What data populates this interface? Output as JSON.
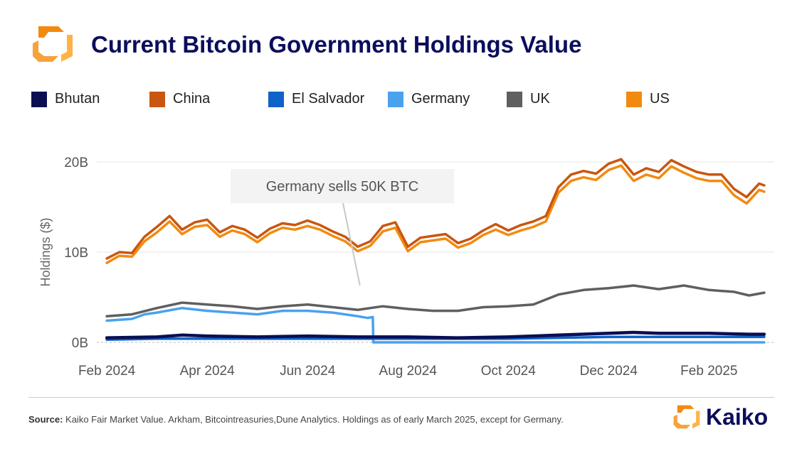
{
  "header": {
    "title": "Current Bitcoin Government Holdings Value"
  },
  "legend": [
    {
      "label": "Bhutan",
      "color": "#0a0f52"
    },
    {
      "label": "China",
      "color": "#c9560f"
    },
    {
      "label": "El Salvador",
      "color": "#0f62c8"
    },
    {
      "label": "Germany",
      "color": "#4aa1ee"
    },
    {
      "label": "UK",
      "color": "#5f5f5f"
    },
    {
      "label": "US",
      "color": "#f28a10"
    }
  ],
  "footer": {
    "source_label": "Source:",
    "source_text": "Kaiko Fair Market Value. Arkham, Bitcointreasuries,Dune Analytics. Holdings as of early March 2025, except for Germany.",
    "brand": "Kaiko"
  },
  "chart_data": {
    "type": "line",
    "title": "Current Bitcoin Government Holdings Value",
    "xlabel": "",
    "ylabel": "Holdings ($)",
    "ylim": [
      0,
      20
    ],
    "yunits": "billions USD",
    "yticks": [
      0,
      10,
      20
    ],
    "ytick_labels": [
      "0B",
      "10B",
      "20B"
    ],
    "xticks": [
      "Feb 2024",
      "Apr 2024",
      "Jun 2024",
      "Aug 2024",
      "Oct 2024",
      "Dec 2024",
      "Feb 2025"
    ],
    "xlim_months": [
      -0.2,
      13.3
    ],
    "grid": "horizontal",
    "legend_position": "top",
    "annotation": {
      "text": "Germany sells 50K BTC",
      "points_to_month": 5.3,
      "points_to_value": 6.3
    },
    "series": [
      {
        "name": "China",
        "color": "#c9560f",
        "x": [
          0,
          0.25,
          0.5,
          0.75,
          1,
          1.25,
          1.5,
          1.75,
          2,
          2.25,
          2.5,
          2.75,
          3,
          3.25,
          3.5,
          3.75,
          4,
          4.25,
          4.5,
          4.75,
          5,
          5.25,
          5.5,
          5.75,
          6,
          6.25,
          6.5,
          6.75,
          7,
          7.25,
          7.5,
          7.75,
          8,
          8.25,
          8.5,
          8.75,
          9,
          9.25,
          9.5,
          9.75,
          10,
          10.25,
          10.5,
          10.75,
          11,
          11.25,
          11.5,
          11.75,
          12,
          12.25,
          12.5,
          12.75,
          13,
          13.1
        ],
        "values": [
          9.3,
          10.0,
          9.9,
          11.7,
          12.8,
          14.0,
          12.5,
          13.3,
          13.6,
          12.2,
          12.9,
          12.5,
          11.6,
          12.6,
          13.2,
          13.0,
          13.5,
          13.0,
          12.3,
          11.7,
          10.6,
          11.2,
          12.9,
          13.3,
          10.6,
          11.6,
          11.8,
          12.0,
          11.0,
          11.5,
          12.4,
          13.1,
          12.4,
          13.0,
          13.4,
          14.0,
          17.2,
          18.6,
          19.0,
          18.7,
          19.8,
          20.3,
          18.6,
          19.3,
          18.9,
          20.2,
          19.5,
          18.9,
          18.6,
          18.6,
          17.0,
          16.1,
          17.6,
          17.4
        ]
      },
      {
        "name": "US",
        "color": "#f28a10",
        "x": [
          0,
          0.25,
          0.5,
          0.75,
          1,
          1.25,
          1.5,
          1.75,
          2,
          2.25,
          2.5,
          2.75,
          3,
          3.25,
          3.5,
          3.75,
          4,
          4.25,
          4.5,
          4.75,
          5,
          5.25,
          5.5,
          5.75,
          6,
          6.25,
          6.5,
          6.75,
          7,
          7.25,
          7.5,
          7.75,
          8,
          8.25,
          8.5,
          8.75,
          9,
          9.25,
          9.5,
          9.75,
          10,
          10.25,
          10.5,
          10.75,
          11,
          11.25,
          11.5,
          11.75,
          12,
          12.25,
          12.5,
          12.75,
          13,
          13.1
        ],
        "values": [
          8.8,
          9.6,
          9.5,
          11.2,
          12.2,
          13.4,
          12.0,
          12.8,
          13.0,
          11.7,
          12.4,
          12.0,
          11.1,
          12.1,
          12.7,
          12.5,
          12.9,
          12.5,
          11.8,
          11.2,
          10.1,
          10.7,
          12.3,
          12.7,
          10.1,
          11.1,
          11.3,
          11.5,
          10.5,
          11.0,
          11.9,
          12.5,
          11.9,
          12.4,
          12.8,
          13.4,
          16.6,
          17.9,
          18.3,
          18.0,
          19.1,
          19.6,
          17.9,
          18.6,
          18.2,
          19.5,
          18.8,
          18.2,
          17.9,
          17.9,
          16.3,
          15.4,
          16.9,
          16.7
        ]
      },
      {
        "name": "UK",
        "color": "#5f5f5f",
        "x": [
          0,
          0.5,
          1,
          1.5,
          2,
          2.5,
          3,
          3.5,
          4,
          4.5,
          5,
          5.5,
          6,
          6.5,
          7,
          7.5,
          8,
          8.5,
          9,
          9.5,
          10,
          10.5,
          11,
          11.5,
          12,
          12.5,
          12.8,
          13.1
        ],
        "values": [
          2.9,
          3.1,
          3.8,
          4.4,
          4.2,
          4.0,
          3.7,
          4.0,
          4.2,
          3.9,
          3.6,
          4.0,
          3.7,
          3.5,
          3.5,
          3.9,
          4.0,
          4.2,
          5.3,
          5.8,
          6.0,
          6.3,
          5.9,
          6.3,
          5.8,
          5.6,
          5.2,
          5.5
        ]
      },
      {
        "name": "Germany",
        "color": "#4aa1ee",
        "x": [
          0,
          0.5,
          0.75,
          1,
          1.5,
          2,
          2.5,
          3,
          3.5,
          4,
          4.5,
          5,
          5.2,
          5.3,
          5.31,
          6,
          7,
          8,
          9,
          10,
          11,
          12,
          13.1
        ],
        "values": [
          2.4,
          2.6,
          3.1,
          3.3,
          3.8,
          3.5,
          3.3,
          3.1,
          3.5,
          3.5,
          3.3,
          2.9,
          2.7,
          2.8,
          0.0,
          0.0,
          0.0,
          0.0,
          0.0,
          0.0,
          0.0,
          0.0,
          0.0
        ]
      },
      {
        "name": "El Salvador",
        "color": "#0f62c8",
        "x": [
          0,
          1,
          2,
          3,
          4,
          5,
          6,
          7,
          8,
          9,
          10,
          11,
          12,
          13.1
        ],
        "values": [
          0.3,
          0.4,
          0.4,
          0.4,
          0.4,
          0.4,
          0.4,
          0.4,
          0.4,
          0.5,
          0.6,
          0.6,
          0.6,
          0.6
        ]
      },
      {
        "name": "Bhutan",
        "color": "#0a0f52",
        "x": [
          0,
          1,
          1.5,
          2,
          3,
          4,
          5,
          6,
          7,
          8,
          9,
          10,
          10.5,
          11,
          12,
          12.8,
          13.1
        ],
        "values": [
          0.5,
          0.6,
          0.8,
          0.7,
          0.6,
          0.7,
          0.6,
          0.6,
          0.5,
          0.6,
          0.8,
          1.0,
          1.1,
          1.0,
          1.0,
          0.9,
          0.9
        ]
      }
    ]
  }
}
